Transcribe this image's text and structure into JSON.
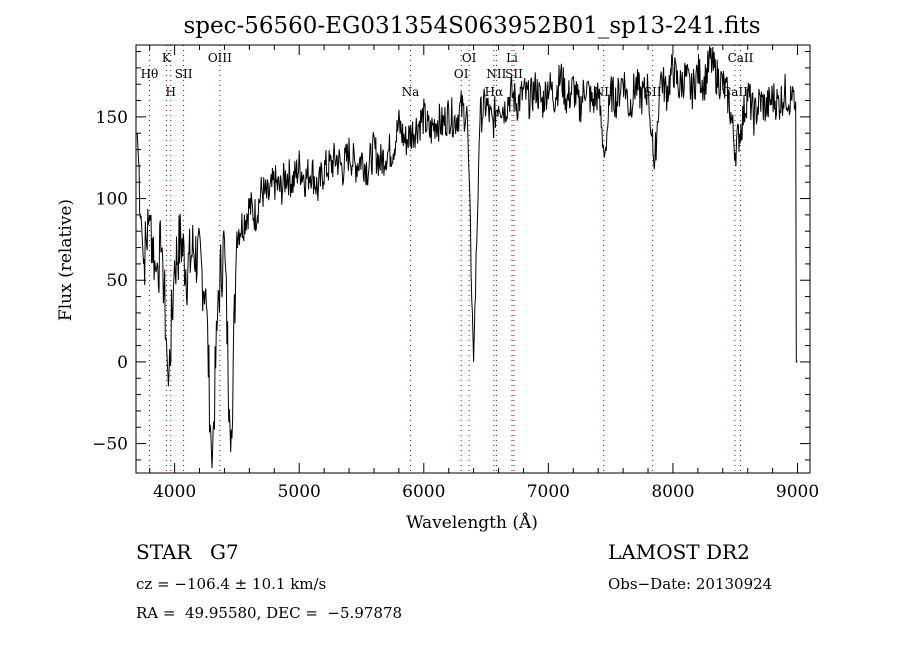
{
  "chart_data": {
    "type": "line",
    "title": "spec-56560-EG031354S063952B01_sp13-241.fits",
    "xlabel": "Wavelength (Å)",
    "ylabel": "Flux (relative)",
    "xlim": [
      3690,
      9100
    ],
    "ylim": [
      -68,
      194
    ],
    "xticks": [
      4000,
      5000,
      6000,
      7000,
      8000,
      9000
    ],
    "yticks": [
      -50,
      0,
      50,
      100,
      150
    ],
    "grid": false,
    "series": [
      {
        "name": "flux",
        "x_start": 3700,
        "x_step": 50,
        "values": [
          140,
          60,
          90,
          55,
          70,
          -15,
          60,
          75,
          55,
          70,
          60,
          45,
          -65,
          40,
          75,
          -55,
          80,
          85,
          95,
          90,
          105,
          100,
          110,
          105,
          115,
          110,
          120,
          112,
          118,
          105,
          118,
          120,
          125,
          118,
          128,
          120,
          125,
          118,
          130,
          122,
          128,
          130,
          145,
          135,
          140,
          145,
          150,
          140,
          148,
          145,
          152,
          148,
          155,
          150,
          0,
          150,
          158,
          145,
          160,
          155,
          165,
          158,
          165,
          160,
          168,
          158,
          170,
          162,
          175,
          160,
          168,
          155,
          170,
          158,
          165,
          125,
          165,
          160,
          175,
          155,
          170,
          162,
          168,
          118,
          175,
          165,
          180,
          168,
          175,
          165,
          178,
          170,
          185,
          175,
          170,
          160,
          130,
          145,
          165,
          150,
          160,
          155,
          162,
          158,
          165,
          160,
          0
        ]
      }
    ],
    "lines": [
      {
        "label": "Hθ",
        "wave": 3798,
        "row": 2
      },
      {
        "label": "K",
        "wave": 3934,
        "row": 1
      },
      {
        "label": "H",
        "wave": 3969,
        "row": 3
      },
      {
        "label": "SII",
        "wave": 4072,
        "row": 2
      },
      {
        "label": "OIII",
        "wave": 4363,
        "row": 1
      },
      {
        "label": "Na",
        "wave": 5893,
        "row": 3
      },
      {
        "label": "OI",
        "wave": 6300,
        "row": 2
      },
      {
        "label": "OI",
        "wave": 6364,
        "row": 1
      },
      {
        "label": "Hα",
        "wave": 6563,
        "row": 3
      },
      {
        "label": "NII",
        "wave": 6583,
        "row": 2
      },
      {
        "label": "Li",
        "wave": 6708,
        "row": 1
      },
      {
        "label": "SII",
        "wave": 6724,
        "row": 2
      },
      {
        "label": "NII",
        "wave": 7444,
        "row": 3
      },
      {
        "label": "SII",
        "wave": 7837,
        "row": 3
      },
      {
        "label": "CaII",
        "wave": 8498,
        "row": 3
      },
      {
        "label": "CaII",
        "wave": 8542,
        "row": 1
      }
    ]
  },
  "info": {
    "object_class": "STAR",
    "subclass": "G7",
    "survey": "LAMOST DR2",
    "redshift": "cz = −106.4 ± 10.1 km/s",
    "obs_date": "Obs−Date: 20130924",
    "coords": "RA =  49.95580, DEC =  −5.97878"
  }
}
